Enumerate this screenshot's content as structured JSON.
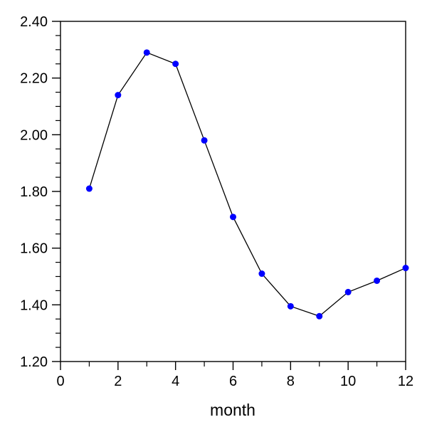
{
  "chart_data": {
    "type": "line",
    "title": "",
    "xlabel": "month",
    "ylabel": "",
    "x": [
      1,
      2,
      3,
      4,
      5,
      6,
      7,
      8,
      9,
      10,
      11,
      12
    ],
    "values": [
      1.81,
      2.14,
      2.29,
      2.25,
      1.98,
      1.71,
      1.51,
      1.395,
      1.36,
      1.445,
      1.485,
      1.53
    ],
    "xlim": [
      0,
      12
    ],
    "ylim": [
      1.2,
      2.4
    ],
    "xticks": [
      0,
      2,
      4,
      6,
      8,
      10,
      12
    ],
    "yticks": [
      1.2,
      1.4,
      1.6,
      1.8,
      2.0,
      2.2,
      2.4
    ],
    "x_minor_step": 1,
    "y_minor_step": 0.05,
    "y_tick_decimals": 2,
    "grid": "off",
    "legend": "none",
    "line_color": "#000000",
    "marker_color": "#0000ff",
    "frame_color": "#000000"
  }
}
